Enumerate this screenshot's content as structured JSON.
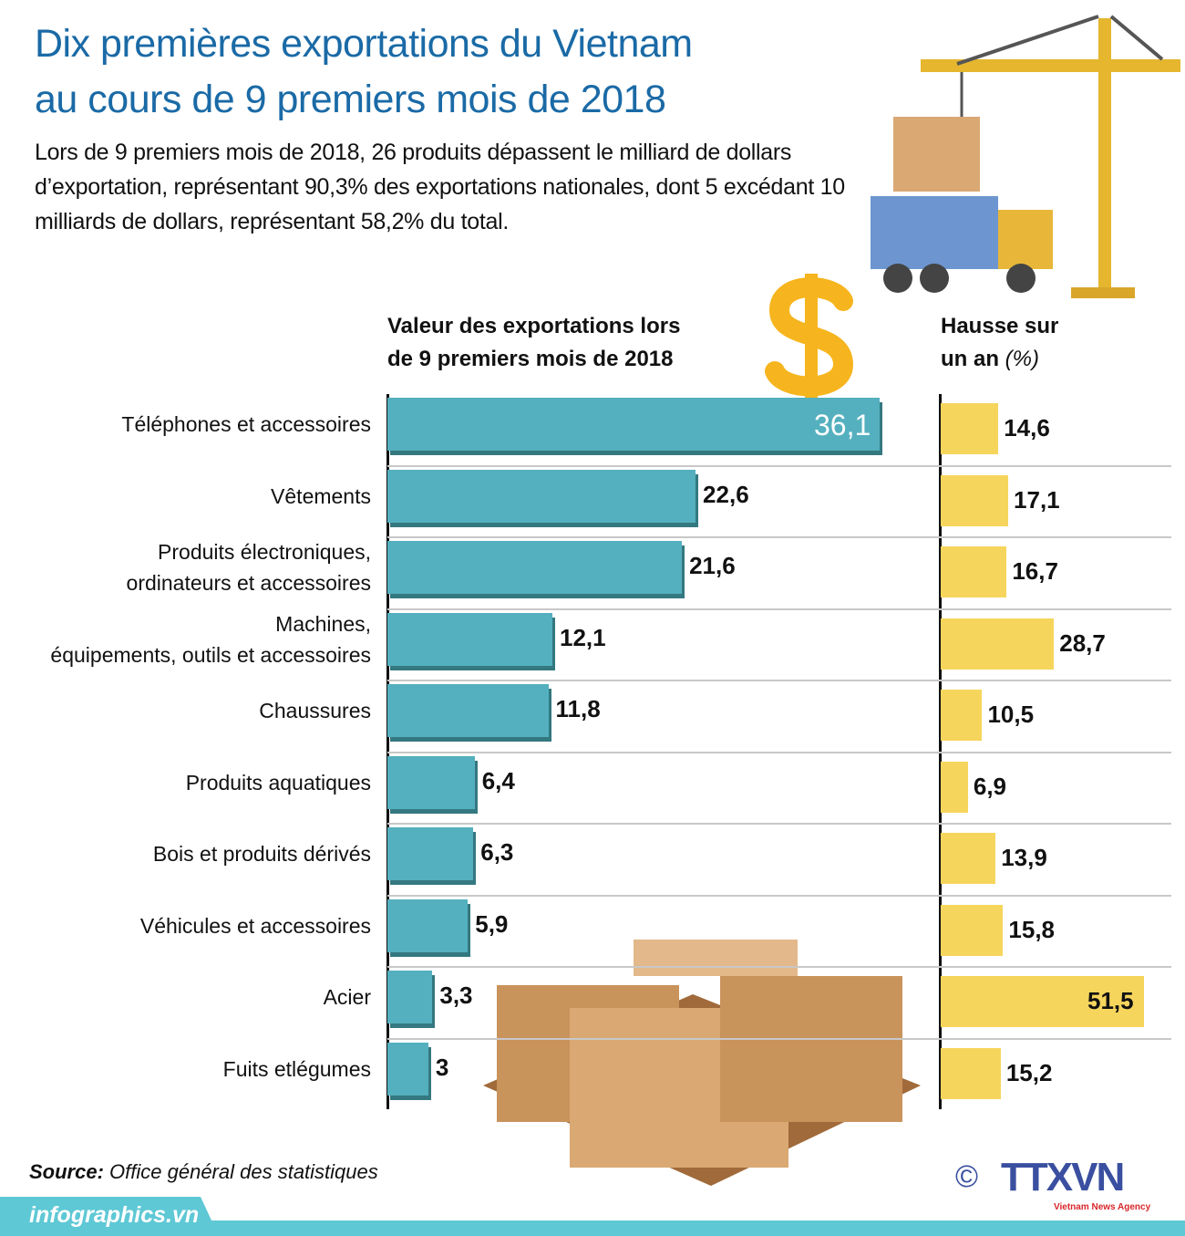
{
  "title_line1": "Dix premières exportations du Vietnam",
  "title_line2": "au cours de 9 premiers mois de 2018",
  "intro": "Lors de 9 premiers mois de 2018, 26 produits dépassent le milliard de dollars d’exportation, représentant 90,3% des exportations nationales, dont 5 excédant 10 milliards de dollars, représentant 58,2% du total.",
  "colors": {
    "title": "#1a6aa6",
    "bar": "#54b0be",
    "bar_shadow": "#347880",
    "growth_bar": "#f6d55c",
    "footer": "#5ec8d5",
    "logo": "#3a4fa0"
  },
  "chart_data": {
    "type": "bar",
    "orientation": "horizontal",
    "categories": [
      "Téléphones et accessoires",
      "Vêtements",
      "Produits électroniques, ordinateurs et accessoires",
      "Machines, équipements, outils et accessoires",
      "Chaussures",
      "Produits aquatiques",
      "Bois et produits dérivés",
      "Véhicules et accessoires",
      "Acier",
      "Fuits etlégumes"
    ],
    "series": [
      {
        "name": "Valeur des exportations lors de 9 premiers mois de 2018",
        "values": [
          36.1,
          22.6,
          21.6,
          12.1,
          11.8,
          6.4,
          6.3,
          5.9,
          3.3,
          3
        ],
        "labels": [
          "36,1",
          "22,6",
          "21,6",
          "12,1",
          "11,8",
          "6,4",
          "6,3",
          "5,9",
          "3,3",
          "3"
        ]
      },
      {
        "name": "Hausse sur un an (%)",
        "values": [
          14.6,
          17.1,
          16.7,
          28.7,
          10.5,
          6.9,
          13.9,
          15.8,
          51.5,
          15.2
        ],
        "labels": [
          "14,6",
          "17,1",
          "16,7",
          "28,7",
          "10,5",
          "6,9",
          "13,9",
          "15,8",
          "51,5",
          "15,2"
        ]
      }
    ],
    "header_left_1": "Valeur des exportations lors",
    "header_left_2": "de 9 premiers mois de 2018",
    "header_right_1": "Hausse sur",
    "header_right_2": "un an",
    "header_right_unit": "(%)",
    "grid": true
  },
  "source_label": "Source:",
  "source": "Office général des statistiques",
  "site": "infographics.vn",
  "logo": {
    "copyright": "©",
    "name": "TTXVN",
    "sub": "Vietnam News Agency"
  }
}
